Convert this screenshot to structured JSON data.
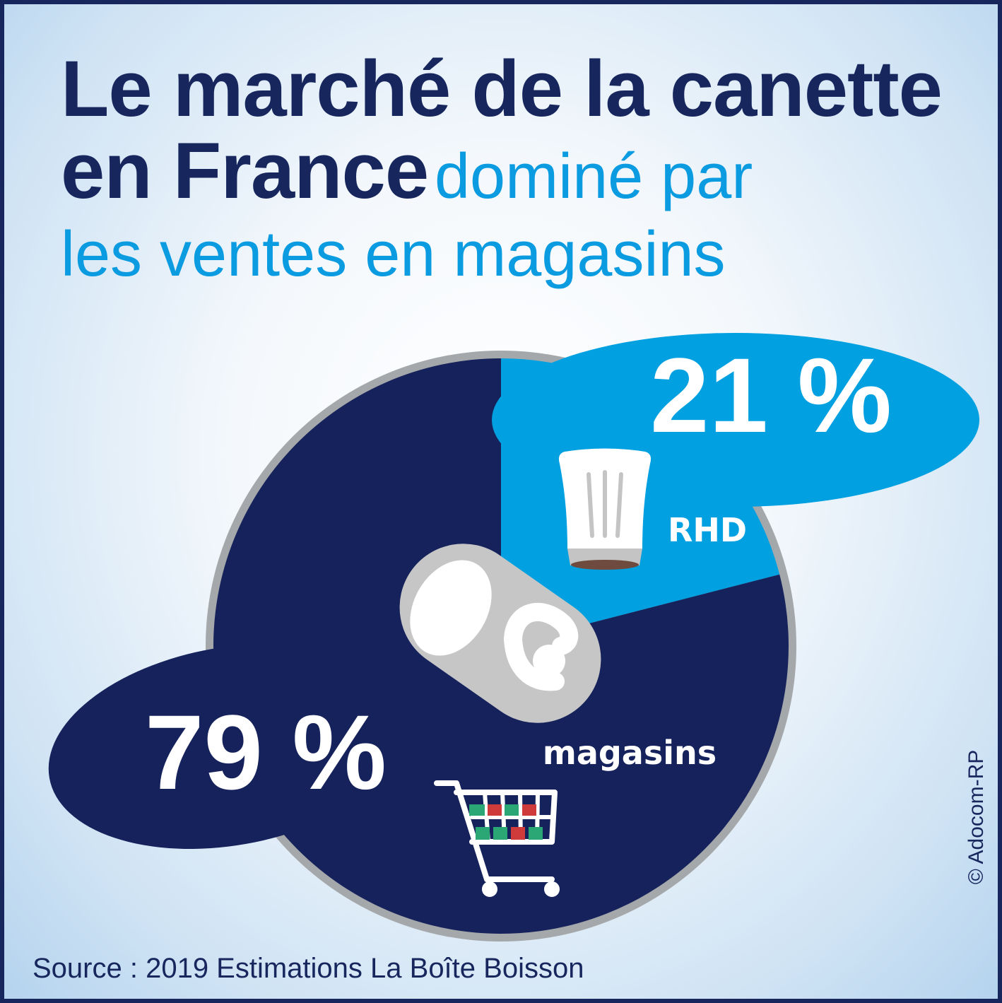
{
  "title": {
    "line1": "Le marché de la canette",
    "line2_bold": "en France",
    "line2_light": "dominé par",
    "line3": "les ventes en magasins"
  },
  "chart_data": {
    "type": "pie",
    "slices": [
      {
        "label": "RHD",
        "value": 21,
        "value_label": "21 %",
        "color": "#00a0e1",
        "icon": "chef-hat-icon"
      },
      {
        "label": "magasins",
        "value": 79,
        "value_label": "79 %",
        "color": "#16225b",
        "icon": "shopping-cart-icon"
      }
    ],
    "center_icon": "can-pull-tab-icon"
  },
  "source": "Source : 2019 Estimations La Boîte Boisson",
  "credit": "© Adocom-RP",
  "colors": {
    "navy": "#16225b",
    "cyan": "#00a0e1",
    "ring": "#a5a8ab",
    "white": "#ffffff"
  }
}
